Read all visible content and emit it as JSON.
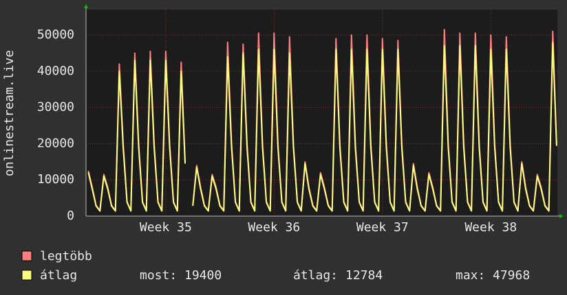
{
  "chart_data": {
    "type": "line",
    "y_label": "onlinestream.live",
    "xlim": [
      -0.15,
      30.3
    ],
    "xticks": [
      {
        "value": 5,
        "label": "Week 35"
      },
      {
        "value": 12,
        "label": "Week 36"
      },
      {
        "value": 19,
        "label": "Week 37"
      },
      {
        "value": 26,
        "label": "Week 38"
      }
    ],
    "ylim": [
      0,
      57000
    ],
    "yticks": [
      0,
      10000,
      20000,
      30000,
      40000,
      50000
    ],
    "grid": true,
    "x": [
      0,
      0.25,
      0.5,
      0.75,
      1,
      1.25,
      1.5,
      1.75,
      2,
      2.25,
      2.5,
      2.75,
      3,
      3.25,
      3.5,
      3.75,
      4,
      4.25,
      4.5,
      4.75,
      5,
      5.25,
      5.5,
      5.75,
      6,
      6.25,
      6.5,
      6.75,
      7,
      7.25,
      7.5,
      7.75,
      8,
      8.25,
      8.5,
      8.75,
      9,
      9.25,
      9.5,
      9.75,
      10,
      10.25,
      10.5,
      10.75,
      11,
      11.25,
      11.5,
      11.75,
      12,
      12.25,
      12.5,
      12.75,
      13,
      13.25,
      13.5,
      13.75,
      14,
      14.25,
      14.5,
      14.75,
      15,
      15.25,
      15.5,
      15.75,
      16,
      16.25,
      16.5,
      16.75,
      17,
      17.25,
      17.5,
      17.75,
      18,
      18.25,
      18.5,
      18.75,
      19,
      19.25,
      19.5,
      19.75,
      20,
      20.25,
      20.5,
      20.75,
      21,
      21.25,
      21.5,
      21.75,
      22,
      22.25,
      22.5,
      22.75,
      23,
      23.25,
      23.5,
      23.75,
      24,
      24.25,
      24.5,
      24.75,
      25,
      25.25,
      25.5,
      25.75,
      26,
      26.25,
      26.5,
      26.75,
      27,
      27.25,
      27.5,
      27.75,
      28,
      28.25,
      28.5,
      28.75,
      29,
      29.25,
      29.5,
      29.75,
      30,
      30.25
    ],
    "series": [
      {
        "name": "legtöbb",
        "color": "#ff7f7f",
        "values": [
          12500,
          8000,
          3000,
          1500,
          11500,
          8000,
          3000,
          1500,
          42000,
          20000,
          4000,
          1500,
          45000,
          20000,
          4000,
          1500,
          45500,
          20000,
          4000,
          1500,
          45500,
          20000,
          4000,
          1500,
          42500,
          15000,
          null,
          3000,
          14000,
          8000,
          3000,
          1500,
          11500,
          8000,
          3000,
          1500,
          48000,
          20000,
          4000,
          1500,
          47500,
          20000,
          4000,
          1500,
          50500,
          20000,
          4000,
          1500,
          50500,
          20000,
          4000,
          1500,
          49500,
          20000,
          4000,
          1500,
          15000,
          8000,
          3000,
          1500,
          12000,
          8000,
          3000,
          1500,
          49000,
          20000,
          4000,
          1500,
          50000,
          20000,
          4000,
          1500,
          50000,
          20000,
          4000,
          1500,
          49000,
          20000,
          4000,
          1500,
          48500,
          20000,
          4000,
          1500,
          14500,
          8000,
          3000,
          1500,
          12000,
          8000,
          3000,
          1500,
          51500,
          20000,
          4000,
          1500,
          50500,
          20000,
          4000,
          1500,
          50500,
          20000,
          4000,
          1500,
          50000,
          20000,
          4000,
          1500,
          49500,
          20000,
          4000,
          1500,
          15000,
          8000,
          3000,
          1500,
          11500,
          8000,
          3000,
          1500,
          51000,
          19800
        ]
      },
      {
        "name": "átlag",
        "color": "#ffff7f",
        "values": [
          12000,
          7500,
          2800,
          1400,
          11000,
          7500,
          2800,
          1400,
          40000,
          19000,
          3800,
          1400,
          43000,
          19000,
          3800,
          1400,
          43000,
          19000,
          3800,
          1400,
          43000,
          19000,
          3800,
          1400,
          40000,
          14500,
          null,
          2800,
          13500,
          7500,
          2800,
          1400,
          11000,
          7500,
          2800,
          1400,
          44000,
          19000,
          3800,
          1400,
          45000,
          19000,
          3800,
          1400,
          46000,
          19000,
          3800,
          1400,
          46000,
          19000,
          3800,
          1400,
          45000,
          19000,
          3800,
          1400,
          14500,
          7500,
          2800,
          1400,
          11500,
          7500,
          2800,
          1400,
          46000,
          19000,
          3800,
          1400,
          46000,
          19000,
          3800,
          1400,
          46000,
          19000,
          3800,
          1400,
          46000,
          19000,
          3800,
          1400,
          46000,
          19000,
          3800,
          1400,
          14000,
          7500,
          2800,
          1400,
          11500,
          7500,
          2800,
          1400,
          47000,
          19000,
          3800,
          1400,
          47000,
          19000,
          3800,
          1400,
          47000,
          19000,
          3800,
          1400,
          46000,
          19000,
          3800,
          1400,
          46000,
          19000,
          3800,
          1400,
          14500,
          7500,
          2800,
          1400,
          11000,
          7500,
          2800,
          1400,
          47968,
          19400
        ]
      }
    ],
    "stats": [
      {
        "label": "most:",
        "value": 19400
      },
      {
        "label": "átlag:",
        "value": 12784
      },
      {
        "label": "max:",
        "value": 47968
      }
    ]
  }
}
